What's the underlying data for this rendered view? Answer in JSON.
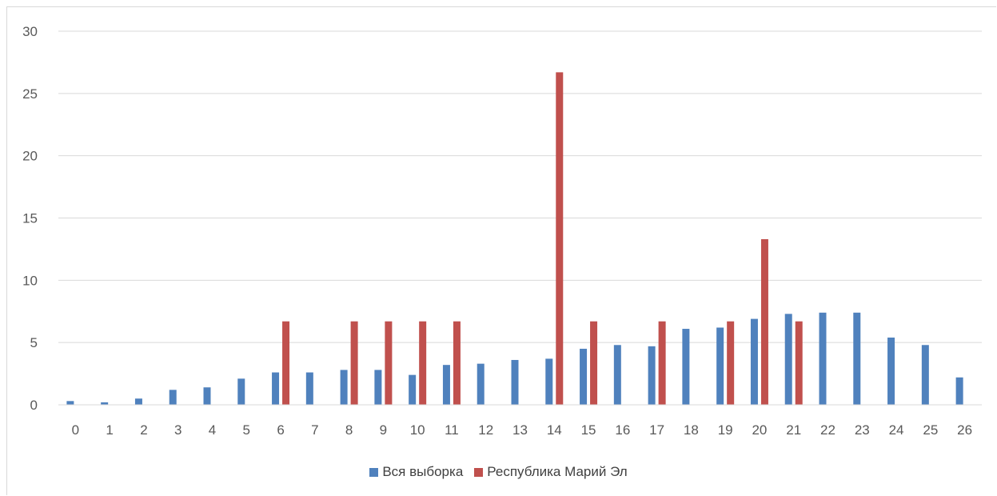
{
  "chart_data": {
    "type": "bar",
    "categories": [
      "0",
      "1",
      "2",
      "3",
      "4",
      "5",
      "6",
      "7",
      "8",
      "9",
      "10",
      "11",
      "12",
      "13",
      "14",
      "15",
      "16",
      "17",
      "18",
      "19",
      "20",
      "21",
      "22",
      "23",
      "24",
      "25",
      "26"
    ],
    "series": [
      {
        "name": "Вся выборка",
        "color": "#4f81bd",
        "values": [
          0.3,
          0.2,
          0.5,
          1.2,
          1.4,
          2.1,
          2.6,
          2.6,
          2.8,
          2.8,
          2.4,
          3.2,
          3.3,
          3.6,
          3.7,
          4.5,
          4.8,
          4.7,
          6.1,
          6.2,
          6.9,
          7.3,
          7.4,
          7.4,
          5.4,
          4.8,
          2.2
        ]
      },
      {
        "name": "Республика Марий Эл",
        "color": "#c0504d",
        "values": [
          0,
          0,
          0,
          0,
          0,
          0,
          6.7,
          0,
          6.7,
          6.7,
          6.7,
          6.7,
          0,
          0,
          26.7,
          6.7,
          0,
          6.7,
          0,
          6.7,
          13.3,
          6.7,
          0,
          0,
          0,
          0,
          0
        ]
      }
    ],
    "ylim": [
      0,
      30
    ],
    "yticks": [
      0,
      5,
      10,
      15,
      20,
      25,
      30
    ],
    "grid": true,
    "legend_position": "bottom"
  }
}
